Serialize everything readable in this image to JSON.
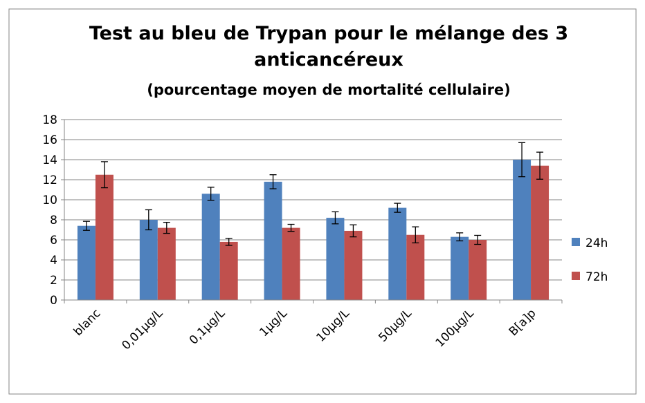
{
  "chart_data": {
    "type": "bar",
    "title": "Test au bleu de Trypan pour le mélange des 3 anticancéreux",
    "subtitle": "(pourcentage moyen de mortalité cellulaire)",
    "categories": [
      "blanc",
      "0,01µg/L",
      "0,1µg/L",
      "1µg/L",
      "10µg/L",
      "50µg/L",
      "100µg/L",
      "B[a]p"
    ],
    "series": [
      {
        "name": "24h",
        "color": "#4f81bd",
        "values": [
          7.4,
          8.0,
          10.6,
          11.8,
          8.2,
          9.2,
          6.3,
          14.0
        ],
        "errors": [
          0.45,
          1.0,
          0.65,
          0.7,
          0.6,
          0.45,
          0.4,
          1.7
        ]
      },
      {
        "name": "72h",
        "color": "#c0504d",
        "values": [
          12.5,
          7.2,
          5.8,
          7.2,
          6.9,
          6.5,
          6.0,
          13.4
        ],
        "errors": [
          1.3,
          0.55,
          0.35,
          0.35,
          0.6,
          0.8,
          0.45,
          1.35
        ]
      }
    ],
    "ylim": [
      0,
      18
    ],
    "yticks": [
      0,
      2,
      4,
      6,
      8,
      10,
      12,
      14,
      16,
      18
    ],
    "grid": true,
    "legend": "right"
  }
}
